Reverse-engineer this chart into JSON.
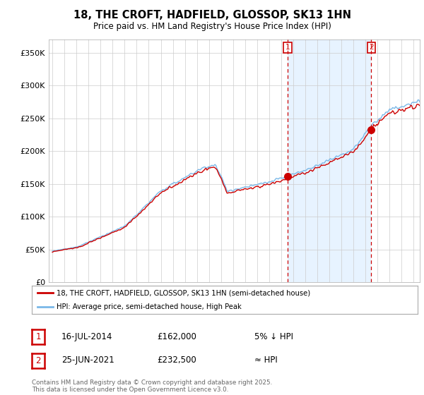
{
  "title": "18, THE CROFT, HADFIELD, GLOSSOP, SK13 1HN",
  "subtitle": "Price paid vs. HM Land Registry's House Price Index (HPI)",
  "ylabel_ticks": [
    "£0",
    "£50K",
    "£100K",
    "£150K",
    "£200K",
    "£250K",
    "£300K",
    "£350K"
  ],
  "ytick_vals": [
    0,
    50000,
    100000,
    150000,
    200000,
    250000,
    300000,
    350000
  ],
  "ylim": [
    0,
    370000
  ],
  "xlim_start": 1994.7,
  "xlim_end": 2025.5,
  "hpi_color": "#7ab8e8",
  "price_color": "#cc0000",
  "shade_color": "#ddeeff",
  "marker1_x": 2014.54,
  "marker1_y": 162000,
  "marker2_x": 2021.48,
  "marker2_y": 232500,
  "annotation1": {
    "num": "1",
    "date": "16-JUL-2014",
    "price": "£162,000",
    "rel": "5% ↓ HPI"
  },
  "annotation2": {
    "num": "2",
    "date": "25-JUN-2021",
    "price": "£232,500",
    "rel": "≈ HPI"
  },
  "legend_line1": "18, THE CROFT, HADFIELD, GLOSSOP, SK13 1HN (semi-detached house)",
  "legend_line2": "HPI: Average price, semi-detached house, High Peak",
  "footer": "Contains HM Land Registry data © Crown copyright and database right 2025.\nThis data is licensed under the Open Government Licence v3.0.",
  "background_color": "#ffffff",
  "grid_color": "#cccccc"
}
